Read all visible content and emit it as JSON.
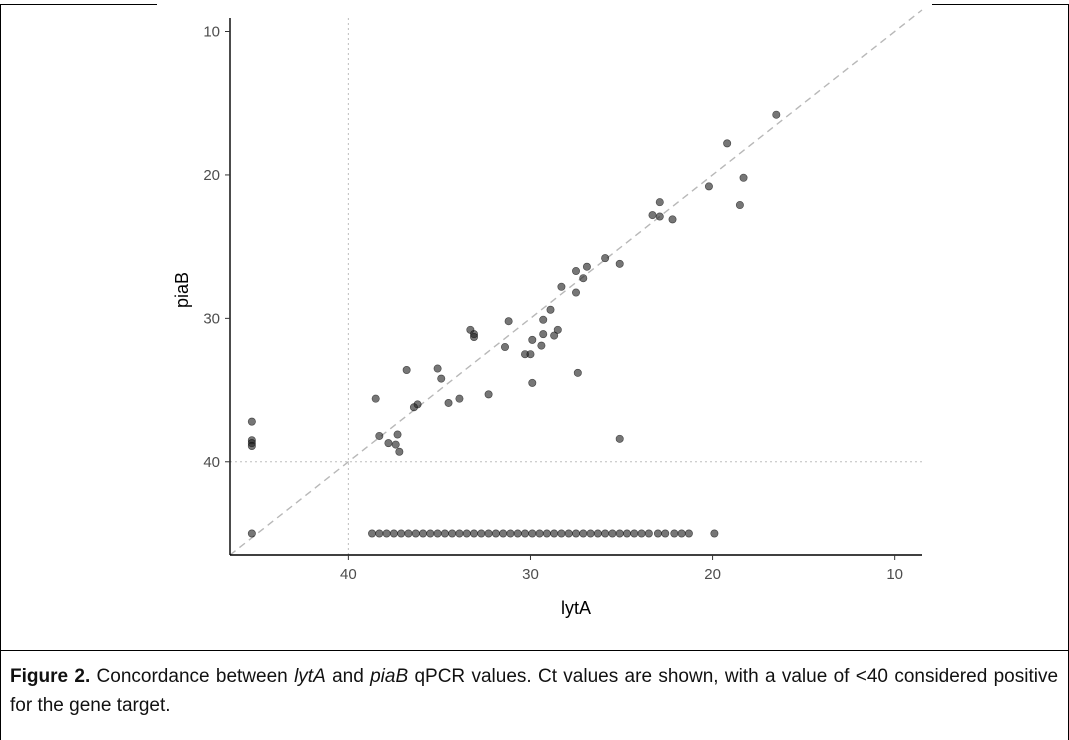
{
  "chart_data": {
    "type": "scatter",
    "xlabel": "lytA",
    "ylabel": "piaB",
    "xlim": [
      46.5,
      8.5
    ],
    "ylim": [
      46.5,
      8.5
    ],
    "x_reversed": true,
    "y_reversed": true,
    "x_ticks": [
      40,
      30,
      20,
      10
    ],
    "y_ticks": [
      10,
      20,
      30,
      40
    ],
    "reference_lines": {
      "diagonal": "y = x (dashed)",
      "vertical_x": 40,
      "horizontal_y": 40
    },
    "grid": false,
    "point_color": "#222222",
    "points": [
      [
        16.5,
        15.8
      ],
      [
        19.2,
        17.8
      ],
      [
        18.3,
        20.2
      ],
      [
        20.2,
        20.8
      ],
      [
        22.9,
        21.9
      ],
      [
        22.9,
        22.9
      ],
      [
        23.3,
        22.8
      ],
      [
        22.2,
        23.1
      ],
      [
        18.5,
        22.1
      ],
      [
        25.9,
        25.8
      ],
      [
        25.1,
        26.2
      ],
      [
        26.9,
        26.4
      ],
      [
        27.5,
        26.7
      ],
      [
        27.1,
        27.2
      ],
      [
        28.3,
        27.8
      ],
      [
        27.5,
        28.2
      ],
      [
        28.9,
        29.4
      ],
      [
        29.3,
        30.1
      ],
      [
        31.2,
        30.2
      ],
      [
        28.5,
        30.8
      ],
      [
        33.3,
        30.8
      ],
      [
        33.1,
        31.1
      ],
      [
        33.1,
        31.3
      ],
      [
        29.3,
        31.1
      ],
      [
        28.7,
        31.2
      ],
      [
        29.9,
        31.5
      ],
      [
        31.4,
        32.0
      ],
      [
        29.4,
        31.9
      ],
      [
        30.3,
        32.5
      ],
      [
        30.0,
        32.5
      ],
      [
        29.9,
        34.5
      ],
      [
        27.4,
        33.8
      ],
      [
        32.3,
        35.3
      ],
      [
        35.1,
        33.5
      ],
      [
        34.9,
        34.2
      ],
      [
        36.8,
        33.6
      ],
      [
        34.5,
        35.9
      ],
      [
        33.9,
        35.6
      ],
      [
        36.2,
        36.0
      ],
      [
        36.4,
        36.2
      ],
      [
        38.5,
        35.6
      ],
      [
        38.3,
        38.2
      ],
      [
        37.3,
        38.1
      ],
      [
        37.8,
        38.7
      ],
      [
        37.4,
        38.8
      ],
      [
        37.2,
        39.3
      ],
      [
        25.1,
        38.4
      ],
      [
        45.3,
        37.2
      ],
      [
        45.3,
        38.5
      ],
      [
        45.3,
        38.7
      ],
      [
        45.3,
        38.9
      ],
      [
        45.3,
        45.0
      ],
      [
        38.7,
        45.0
      ],
      [
        38.3,
        45.0
      ],
      [
        37.9,
        45.0
      ],
      [
        37.5,
        45.0
      ],
      [
        37.1,
        45.0
      ],
      [
        36.7,
        45.0
      ],
      [
        36.3,
        45.0
      ],
      [
        35.9,
        45.0
      ],
      [
        35.5,
        45.0
      ],
      [
        35.1,
        45.0
      ],
      [
        34.7,
        45.0
      ],
      [
        34.3,
        45.0
      ],
      [
        33.9,
        45.0
      ],
      [
        33.5,
        45.0
      ],
      [
        33.1,
        45.0
      ],
      [
        32.7,
        45.0
      ],
      [
        32.3,
        45.0
      ],
      [
        31.9,
        45.0
      ],
      [
        31.5,
        45.0
      ],
      [
        31.1,
        45.0
      ],
      [
        30.7,
        45.0
      ],
      [
        30.3,
        45.0
      ],
      [
        29.9,
        45.0
      ],
      [
        29.5,
        45.0
      ],
      [
        29.1,
        45.0
      ],
      [
        28.7,
        45.0
      ],
      [
        28.3,
        45.0
      ],
      [
        27.9,
        45.0
      ],
      [
        27.5,
        45.0
      ],
      [
        27.1,
        45.0
      ],
      [
        26.7,
        45.0
      ],
      [
        26.3,
        45.0
      ],
      [
        25.9,
        45.0
      ],
      [
        25.5,
        45.0
      ],
      [
        25.1,
        45.0
      ],
      [
        24.7,
        45.0
      ],
      [
        24.3,
        45.0
      ],
      [
        23.9,
        45.0
      ],
      [
        23.5,
        45.0
      ],
      [
        23.0,
        45.0
      ],
      [
        22.6,
        45.0
      ],
      [
        22.1,
        45.0
      ],
      [
        21.7,
        45.0
      ],
      [
        21.3,
        45.0
      ],
      [
        19.9,
        45.0
      ]
    ]
  },
  "caption": {
    "label": "Figure 2.",
    "t1": " Concordance between ",
    "gene1": "lytA",
    "t2": " and ",
    "gene2": "piaB",
    "t3": " qPCR values. Ct values are shown, with a value of <40 considered positive for the gene target."
  }
}
